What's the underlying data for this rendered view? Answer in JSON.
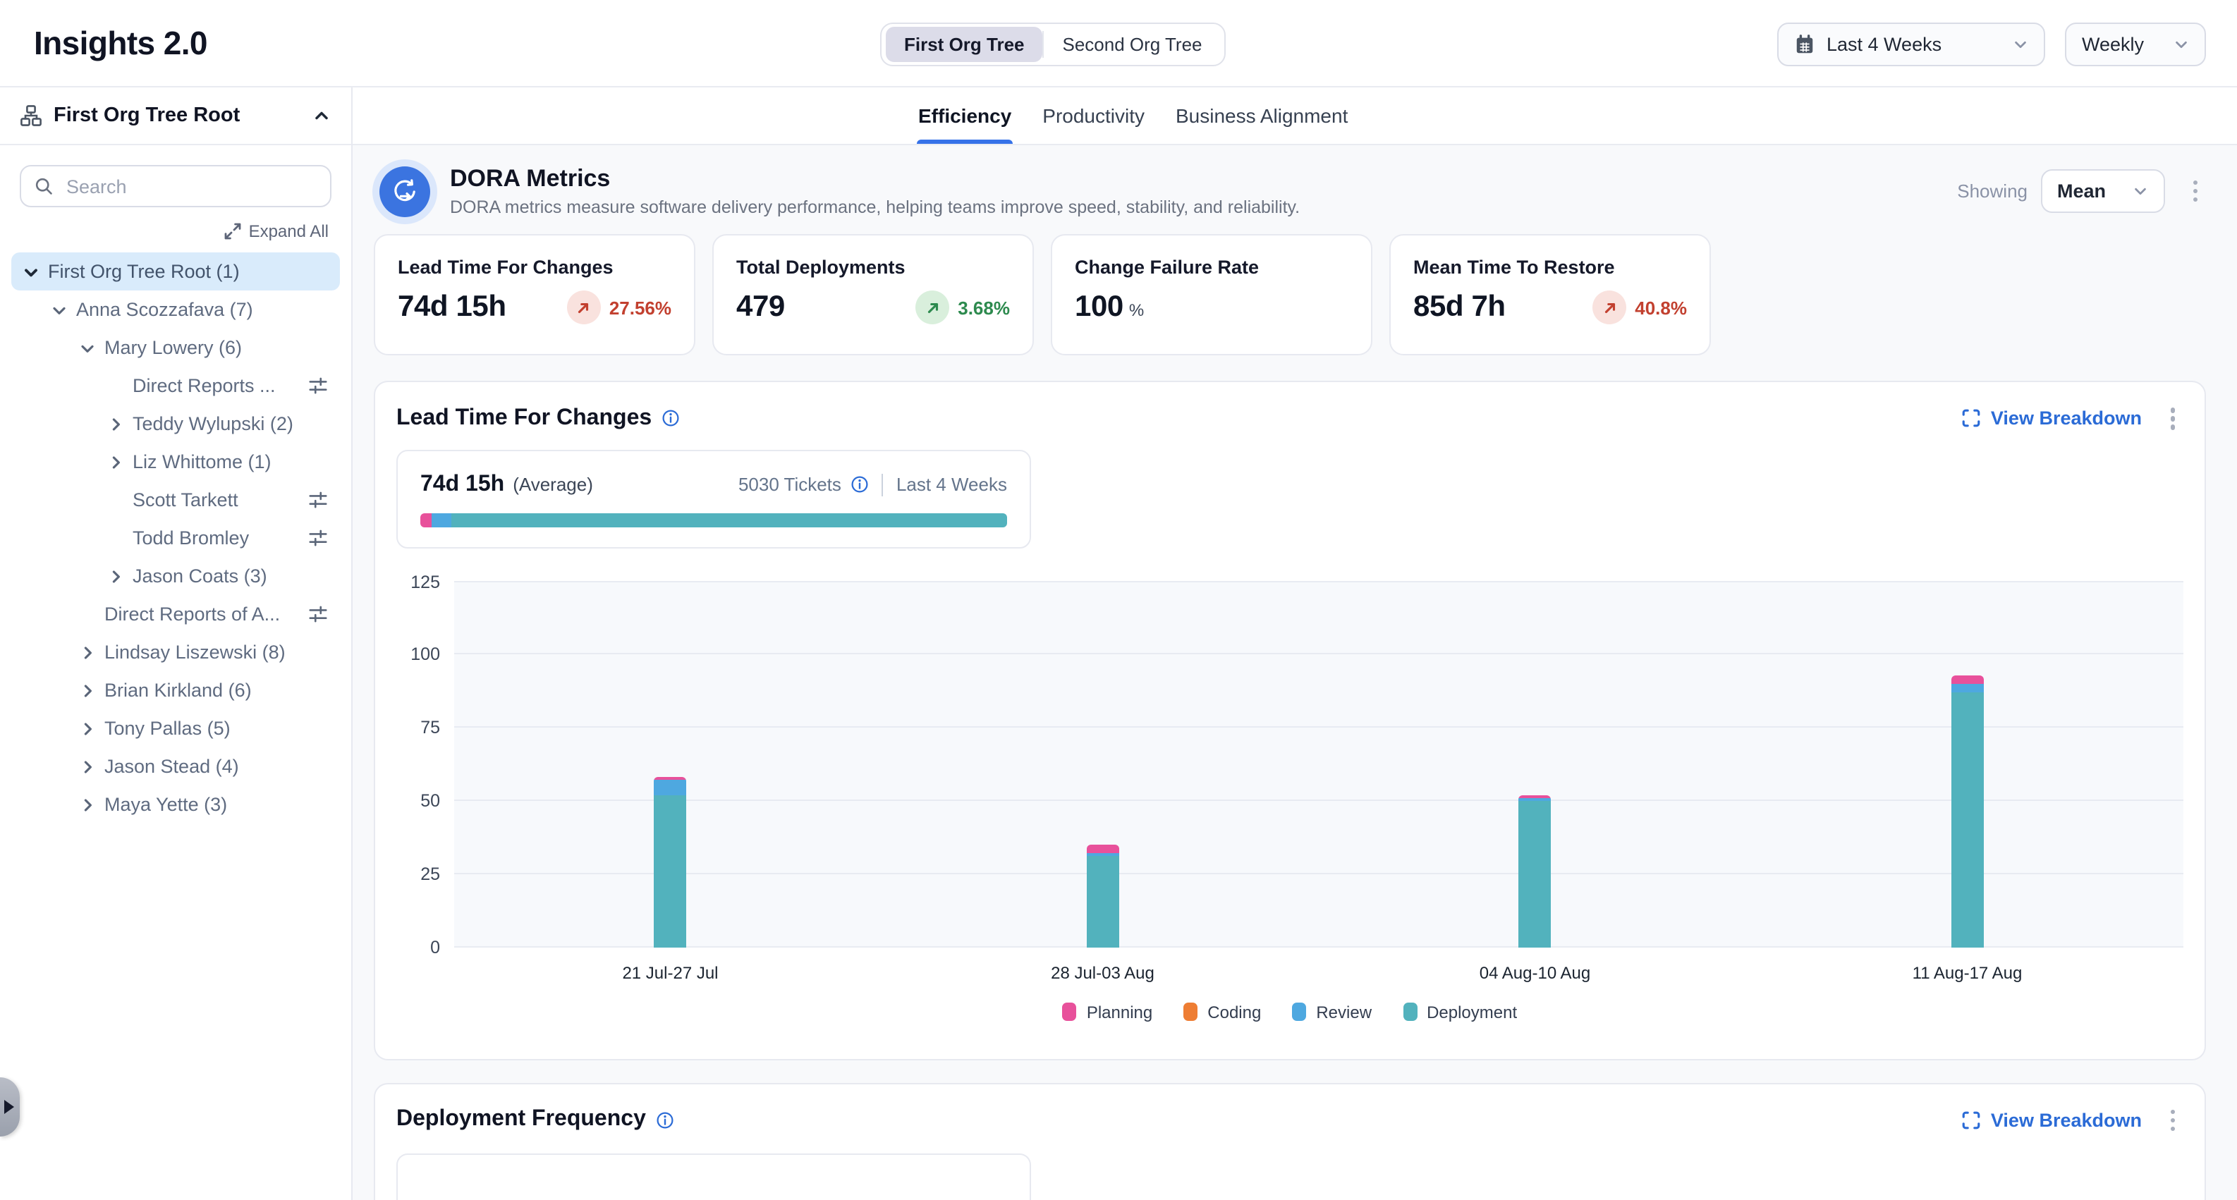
{
  "header": {
    "app_title": "Insights 2.0",
    "org_tree_toggle": {
      "options": [
        {
          "label": "First Org Tree",
          "active": true
        },
        {
          "label": "Second Org Tree",
          "active": false
        }
      ]
    },
    "date_range_select": {
      "value": "Last 4 Weeks",
      "icon": "calendar-icon"
    },
    "granularity_select": {
      "value": "Weekly"
    }
  },
  "sidebar": {
    "title": "First Org Tree Root",
    "search": {
      "placeholder": "Search"
    },
    "expand_all_label": "Expand All",
    "tree": [
      {
        "label": "First Org Tree Root (1)",
        "level": 0,
        "chevron": "down",
        "selected": true,
        "filter": false
      },
      {
        "label": "Anna Scozzafava (7)",
        "level": 1,
        "chevron": "down",
        "selected": false,
        "filter": false
      },
      {
        "label": "Mary Lowery (6)",
        "level": 2,
        "chevron": "down",
        "selected": false,
        "filter": false
      },
      {
        "label": "Direct Reports ...",
        "level": 3,
        "chevron": "none",
        "selected": false,
        "filter": true
      },
      {
        "label": "Teddy Wylupski (2)",
        "level": 3,
        "chevron": "right",
        "selected": false,
        "filter": false
      },
      {
        "label": "Liz Whittome (1)",
        "level": 3,
        "chevron": "right",
        "selected": false,
        "filter": false
      },
      {
        "label": "Scott Tarkett",
        "level": 3,
        "chevron": "none",
        "selected": false,
        "filter": true
      },
      {
        "label": "Todd Bromley",
        "level": 3,
        "chevron": "none",
        "selected": false,
        "filter": true
      },
      {
        "label": "Jason Coats (3)",
        "level": 3,
        "chevron": "right",
        "selected": false,
        "filter": false
      },
      {
        "label": "Direct Reports of A...",
        "level": 2,
        "chevron": "none",
        "selected": false,
        "filter": true
      },
      {
        "label": "Lindsay Liszewski (8)",
        "level": 2,
        "chevron": "right",
        "selected": false,
        "filter": false
      },
      {
        "label": "Brian Kirkland (6)",
        "level": 2,
        "chevron": "right",
        "selected": false,
        "filter": false
      },
      {
        "label": "Tony Pallas (5)",
        "level": 2,
        "chevron": "right",
        "selected": false,
        "filter": false
      },
      {
        "label": "Jason Stead (4)",
        "level": 2,
        "chevron": "right",
        "selected": false,
        "filter": false
      },
      {
        "label": "Maya Yette (3)",
        "level": 2,
        "chevron": "right",
        "selected": false,
        "filter": false
      }
    ]
  },
  "tabs": [
    {
      "label": "Efficiency",
      "active": true
    },
    {
      "label": "Productivity",
      "active": false
    },
    {
      "label": "Business Alignment",
      "active": false
    }
  ],
  "dora": {
    "title": "DORA Metrics",
    "description": "DORA metrics measure software delivery performance, helping teams improve speed, stability, and reliability.",
    "showing_label": "Showing",
    "showing_select": {
      "value": "Mean"
    },
    "cards": [
      {
        "title": "Lead Time For Changes",
        "value": "74d 15h",
        "delta": "27.56%",
        "direction": "up",
        "sentiment": "negative"
      },
      {
        "title": "Total Deployments",
        "value": "479",
        "delta": "3.68%",
        "direction": "up",
        "sentiment": "positive"
      },
      {
        "title": "Change Failure Rate",
        "value": "100",
        "unit": "%"
      },
      {
        "title": "Mean Time To Restore",
        "value": "85d 7h",
        "delta": "40.8%",
        "direction": "up",
        "sentiment": "negative"
      }
    ]
  },
  "lead_time_section": {
    "title": "Lead Time For Changes",
    "view_breakdown_label": "View Breakdown",
    "summary": {
      "value": "74d 15h",
      "qualifier": "(Average)",
      "tickets": "5030 Tickets",
      "period": "Last 4 Weeks",
      "distribution_pct": [
        {
          "name": "Planning",
          "pct": 1.9,
          "color": "#e8519b"
        },
        {
          "name": "Review",
          "pct": 3.4,
          "color": "#4ea8e0"
        },
        {
          "name": "Deployment",
          "pct": 94.7,
          "color": "#52b2bd"
        }
      ]
    },
    "chart_data": {
      "type": "bar",
      "stacked": true,
      "title": "Lead Time For Changes",
      "categories": [
        "21 Jul-27 Jul",
        "28 Jul-03 Aug",
        "04 Aug-10 Aug",
        "11 Aug-17 Aug"
      ],
      "series": [
        {
          "name": "Planning",
          "color": "#e8519b",
          "values": [
            1,
            3,
            1,
            3
          ]
        },
        {
          "name": "Coding",
          "color": "#ee7d33",
          "values": [
            0,
            0,
            0,
            0
          ]
        },
        {
          "name": "Review",
          "color": "#4ea8e0",
          "values": [
            5,
            1,
            1,
            3
          ]
        },
        {
          "name": "Deployment",
          "color": "#52b2bd",
          "values": [
            52,
            31,
            50,
            87
          ]
        }
      ],
      "stack_order_bottom_to_top": [
        "Deployment",
        "Review",
        "Coding",
        "Planning"
      ],
      "ylim": [
        0,
        125
      ],
      "yticks": [
        0,
        25,
        50,
        75,
        100,
        125
      ],
      "grid": true,
      "legend_position": "bottom"
    }
  },
  "deployment_section": {
    "title": "Deployment Frequency",
    "view_breakdown_label": "View Breakdown"
  },
  "colors": {
    "accent_blue": "#2b6bd6",
    "tab_underline": "#3672e8",
    "negative_red": "#c2402f",
    "positive_green": "#2d8a4e",
    "selected_tree_row_bg": "#d9ebfb",
    "toggle_active_bg": "#dcdce9",
    "dora_icon_blue": "#3b74e0"
  }
}
